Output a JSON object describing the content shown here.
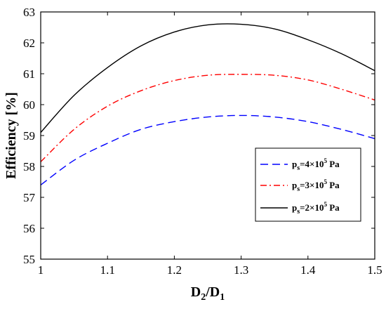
{
  "chart_data": {
    "type": "line",
    "xlabel": {
      "main": "D",
      "sub1": "2",
      "sep": "/D",
      "sub2": "1"
    },
    "ylabel": "Efficiency [%]",
    "xlim": [
      1,
      1.5
    ],
    "ylim": [
      55,
      63
    ],
    "xticks": [
      "1",
      "1.1",
      "1.2",
      "1.3",
      "1.4",
      "1.5"
    ],
    "yticks": [
      "55",
      "56",
      "57",
      "58",
      "59",
      "60",
      "61",
      "62",
      "63"
    ],
    "grid": false,
    "legend_position": "right",
    "x": [
      1.0,
      1.05,
      1.1,
      1.15,
      1.2,
      1.25,
      1.3,
      1.35,
      1.4,
      1.45,
      1.5
    ],
    "series": [
      {
        "name": {
          "pre": "p",
          "sub": "s",
          "mid": "=4×10",
          "sup": "5",
          "post": " Pa"
        },
        "color": "#0000ff",
        "dash": "dashed",
        "values": [
          57.4,
          58.2,
          58.75,
          59.2,
          59.45,
          59.6,
          59.65,
          59.6,
          59.45,
          59.2,
          58.9
        ]
      },
      {
        "name": {
          "pre": "p",
          "sub": "s",
          "mid": "=3×10",
          "sup": "5",
          "post": " Pa"
        },
        "color": "#ff0000",
        "dash": "dash-dot",
        "values": [
          58.15,
          59.2,
          59.95,
          60.45,
          60.78,
          60.95,
          60.98,
          60.95,
          60.8,
          60.5,
          60.15
        ]
      },
      {
        "name": {
          "pre": "p",
          "sub": "s",
          "mid": "=2×10",
          "sup": "5",
          "post": " Pa"
        },
        "color": "#000000",
        "dash": "solid",
        "values": [
          59.1,
          60.3,
          61.2,
          61.9,
          62.35,
          62.58,
          62.6,
          62.45,
          62.1,
          61.65,
          61.1
        ]
      }
    ]
  }
}
